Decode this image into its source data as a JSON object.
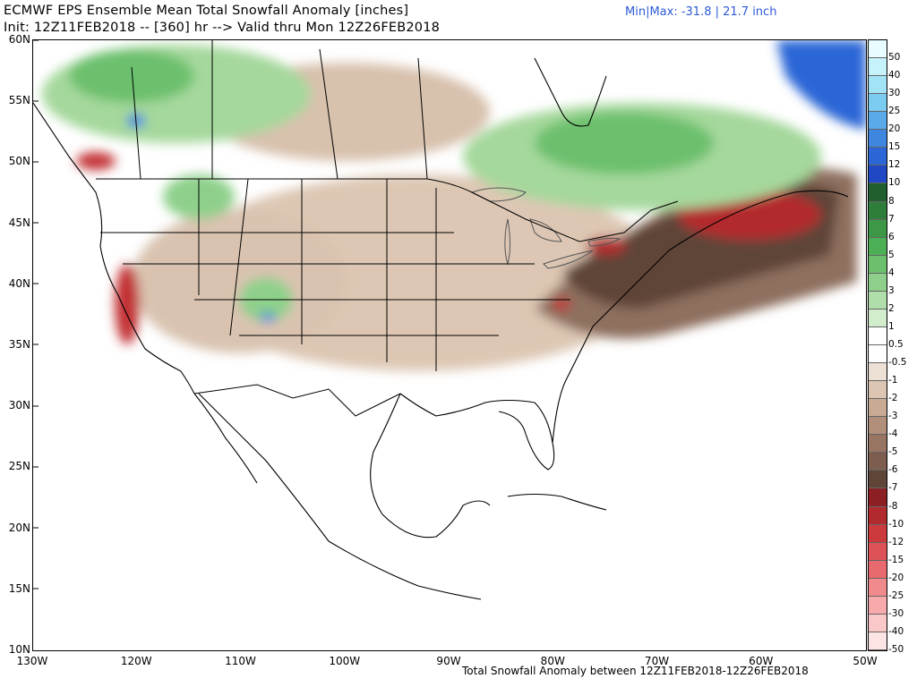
{
  "title": {
    "line1": "ECMWF EPS Ensemble Mean Total Snowfall Anomaly [inches]",
    "line2": "Init: 12Z11FEB2018 -- [360] hr --> Valid thru Mon 12Z26FEB2018"
  },
  "minmax": "Min|Max: -31.8 | 21.7 inch",
  "footer": "Total Snowfall Anomaly between 12Z11FEB2018-12Z26FEB2018",
  "axes": {
    "lat_labels": [
      "60N",
      "55N",
      "50N",
      "45N",
      "40N",
      "35N",
      "30N",
      "25N",
      "20N",
      "15N",
      "10N"
    ],
    "lon_labels": [
      "130W",
      "120W",
      "110W",
      "100W",
      "90W",
      "80W",
      "70W",
      "60W",
      "50W"
    ]
  },
  "colorbar": {
    "labels": [
      "50",
      "40",
      "30",
      "25",
      "20",
      "15",
      "12",
      "10",
      "8",
      "7",
      "6",
      "5",
      "4",
      "3",
      "2",
      "1",
      "0.5",
      "-0.5",
      "-1",
      "-2",
      "-3",
      "-4",
      "-5",
      "-6",
      "-7",
      "-8",
      "-10",
      "-12",
      "-15",
      "-20",
      "-25",
      "-30",
      "-40",
      "-50"
    ],
    "colors": [
      "#e8fbff",
      "#c6f2fb",
      "#a2e3f6",
      "#7ccbf1",
      "#5aaaea",
      "#3e86e0",
      "#2c66d6",
      "#2048c4",
      "#215e2e",
      "#2f7d3b",
      "#3c9847",
      "#4caf55",
      "#6cc06d",
      "#8ed08b",
      "#b0deaa",
      "#d2edcc",
      "#ffffff",
      "#ffffff",
      "#ede0d4",
      "#dcc5b2",
      "#c9ab95",
      "#b18f7b",
      "#987562",
      "#7d5e4e",
      "#5e4538",
      "#8c1f24",
      "#b32a2e",
      "#cc3a3c",
      "#dc5256",
      "#e86a6e",
      "#f08a8c",
      "#f6aaab",
      "#fac8c8",
      "#fde4e4"
    ]
  },
  "colors": {
    "land_border": "#000000",
    "state_border": "#000000",
    "lakes": "#555555",
    "title_accent": "#2e5bd6"
  }
}
